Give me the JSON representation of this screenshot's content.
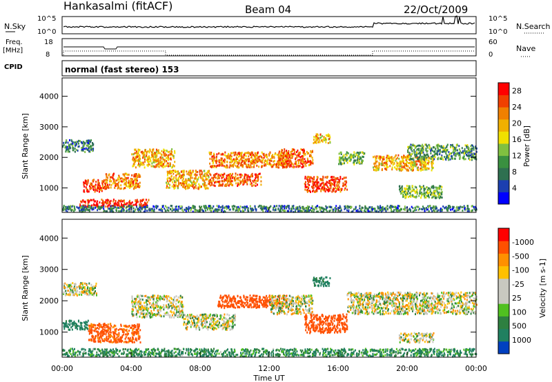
{
  "header": {
    "station": "Hankasalmi (fitACF)",
    "beam": "Beam 04",
    "date": "22/Oct/2009"
  },
  "top_panels": {
    "nsky_label": "N.Sky",
    "nsky_ticks": [
      "10^5",
      "10^0"
    ],
    "nsearch_label": "N.Search",
    "nsearch_ticks": [
      "10^5",
      "10^0"
    ],
    "freq_label": "Freq.",
    "freq_unit": "[MHz]",
    "freq_ticks": [
      "18",
      "8"
    ],
    "nave_label": "Nave",
    "nave_ticks": [
      "60",
      "0"
    ],
    "cpid_label": "CPID",
    "cpid_text": "normal (fast stereo) 153"
  },
  "colors": {
    "power_scale": [
      "#0000ff",
      "#1c3fb0",
      "#2e7050",
      "#3a9040",
      "#80c040",
      "#f0e000",
      "#f0b000",
      "#f08000",
      "#f04000",
      "#ff0000"
    ],
    "velocity_scale": [
      "#ff0000",
      "#ff5000",
      "#ff9000",
      "#ffc000",
      "#c8c8c0",
      "#c8c8c0",
      "#50c020",
      "#2e8040",
      "#208060",
      "#0040c0"
    ]
  },
  "chart_data": [
    {
      "type": "heatmap",
      "name": "power",
      "ylabel": "Slant Range [km]",
      "y_ticks": [
        "1000",
        "2000",
        "3000",
        "4000"
      ],
      "ylim": [
        200,
        4600
      ],
      "colorbar_label": "Power [dB]",
      "colorbar_ticks": [
        "4",
        "8",
        "12",
        "16",
        "20",
        "24",
        "28"
      ],
      "color_range": [
        0,
        30
      ],
      "regions": [
        {
          "t": [
            1.0,
            5.0
          ],
          "r": [
            400,
            650
          ],
          "level": 28
        },
        {
          "t": [
            1.2,
            2.5
          ],
          "r": [
            900,
            1300
          ],
          "level": 26
        },
        {
          "t": [
            2.5,
            4.5
          ],
          "r": [
            1000,
            1500
          ],
          "level": 22
        },
        {
          "t": [
            0.0,
            1.8
          ],
          "r": [
            2200,
            2600
          ],
          "level": 8
        },
        {
          "t": [
            4.0,
            6.5
          ],
          "r": [
            1700,
            2300
          ],
          "level": 20
        },
        {
          "t": [
            6.0,
            8.5
          ],
          "r": [
            1000,
            1600
          ],
          "level": 20
        },
        {
          "t": [
            8.5,
            11.5
          ],
          "r": [
            1100,
            1500
          ],
          "level": 24
        },
        {
          "t": [
            8.5,
            13.0
          ],
          "r": [
            1700,
            2200
          ],
          "level": 22
        },
        {
          "t": [
            12.5,
            14.5
          ],
          "r": [
            1700,
            2300
          ],
          "level": 24
        },
        {
          "t": [
            14.0,
            16.5
          ],
          "r": [
            900,
            1400
          ],
          "level": 26
        },
        {
          "t": [
            14.5,
            15.5
          ],
          "r": [
            2500,
            2800
          ],
          "level": 20
        },
        {
          "t": [
            16.0,
            17.5
          ],
          "r": [
            1800,
            2200
          ],
          "level": 12
        },
        {
          "t": [
            18.0,
            21.5
          ],
          "r": [
            1600,
            2100
          ],
          "level": 20
        },
        {
          "t": [
            20.0,
            24.0
          ],
          "r": [
            1950,
            2450
          ],
          "level": 10
        },
        {
          "t": [
            19.5,
            22.0
          ],
          "r": [
            700,
            1100
          ],
          "level": 12
        },
        {
          "t": [
            0.0,
            24.0
          ],
          "r": [
            250,
            450
          ],
          "level": 8
        }
      ]
    },
    {
      "type": "heatmap",
      "name": "velocity",
      "ylabel": "Slant Range [km]",
      "y_ticks": [
        "1000",
        "2000",
        "3000",
        "4000"
      ],
      "ylim": [
        200,
        4600
      ],
      "colorbar_label": "Velocity [m s-1]",
      "colorbar_ticks": [
        "1000",
        "500",
        "100",
        "25",
        "-25",
        "-100",
        "-500",
        "-1000"
      ],
      "regions": [
        {
          "t": [
            0.0,
            2.0
          ],
          "r": [
            2200,
            2600
          ],
          "vel": 0
        },
        {
          "t": [
            0.0,
            1.5
          ],
          "r": [
            1100,
            1400
          ],
          "vel": 150
        },
        {
          "t": [
            1.5,
            4.5
          ],
          "r": [
            700,
            1300
          ],
          "vel": -150
        },
        {
          "t": [
            4.0,
            7.0
          ],
          "r": [
            1500,
            2200
          ],
          "vel": 0
        },
        {
          "t": [
            7.0,
            10.0
          ],
          "r": [
            1100,
            1600
          ],
          "vel": 0
        },
        {
          "t": [
            9.0,
            13.0
          ],
          "r": [
            1800,
            2200
          ],
          "vel": -200
        },
        {
          "t": [
            12.0,
            14.5
          ],
          "r": [
            1600,
            2200
          ],
          "vel": 0
        },
        {
          "t": [
            14.0,
            16.5
          ],
          "r": [
            1000,
            1600
          ],
          "vel": -200
        },
        {
          "t": [
            14.5,
            15.5
          ],
          "r": [
            2500,
            2800
          ],
          "vel": 150
        },
        {
          "t": [
            16.5,
            24.0
          ],
          "r": [
            1600,
            2300
          ],
          "vel": 0
        },
        {
          "t": [
            19.5,
            21.5
          ],
          "r": [
            700,
            1000
          ],
          "vel": 0
        },
        {
          "t": [
            0.0,
            24.0
          ],
          "r": [
            250,
            500
          ],
          "vel": 100
        }
      ]
    }
  ],
  "x_axis": {
    "ticks": [
      "00:00",
      "04:00",
      "08:00",
      "12:00",
      "16:00",
      "20:00",
      "00:00"
    ],
    "label": "Time UT",
    "range_hours": [
      0,
      24
    ]
  }
}
